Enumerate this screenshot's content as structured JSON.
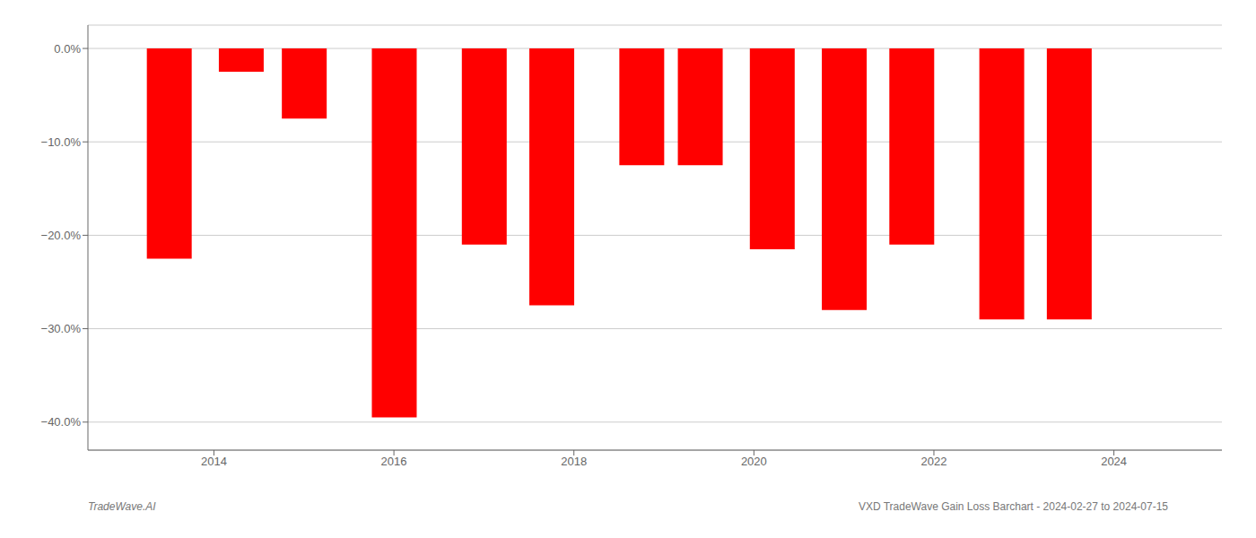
{
  "chart_data": {
    "type": "bar",
    "x": [
      2013.5,
      2014.3,
      2015.0,
      2016.0,
      2017.0,
      2017.75,
      2018.75,
      2019.4,
      2020.2,
      2021.0,
      2021.75,
      2022.75,
      2023.5
    ],
    "values": [
      -22.5,
      -2.5,
      -7.5,
      -39.5,
      -21.0,
      -27.5,
      -12.5,
      -12.5,
      -21.5,
      -28.0,
      -21.0,
      -29.0,
      -29.0
    ],
    "color": "#ff0000",
    "xlim": [
      2012.6,
      2025.2
    ],
    "xticks": [
      2014,
      2016,
      2018,
      2020,
      2022,
      2024
    ],
    "ylim": [
      -43,
      2.5
    ],
    "yticks": [
      {
        "value": 0.0,
        "label": "0.0%"
      },
      {
        "value": -10.0,
        "label": "−10.0%"
      },
      {
        "value": -20.0,
        "label": "−20.0%"
      },
      {
        "value": -30.0,
        "label": "−30.0%"
      },
      {
        "value": -40.0,
        "label": "−40.0%"
      }
    ],
    "grid": true,
    "annotations": [
      "TradeWave.AI",
      "VXD TradeWave Gain Loss Barchart - 2024-02-27 to 2024-07-15"
    ]
  }
}
